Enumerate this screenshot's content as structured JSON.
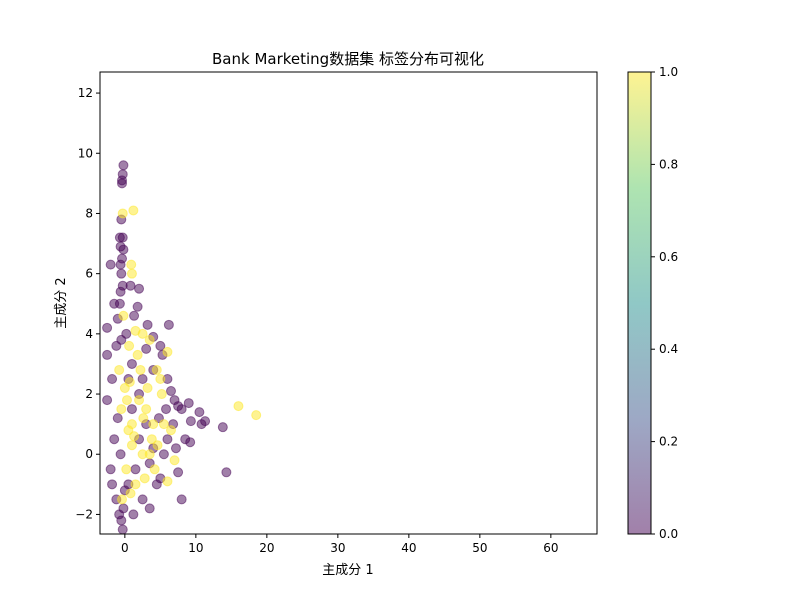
{
  "chart_data": {
    "type": "scatter",
    "title": "Bank Marketing数据集 标签分布可视化",
    "xlabel": "主成分 1",
    "ylabel": "主成分 2",
    "xlim": [
      -3.5,
      66.5
    ],
    "ylim": [
      -2.65,
      12.7
    ],
    "xticks": [
      0,
      10,
      20,
      30,
      40,
      50,
      60
    ],
    "yticks": [
      -2,
      0,
      2,
      4,
      6,
      8,
      10,
      12
    ],
    "grid": false,
    "colormap": "viridis",
    "colorbar": {
      "range": [
        0.0,
        1.0
      ],
      "ticks": [
        "0.0",
        "0.2",
        "0.4",
        "0.6",
        "0.8",
        "1.0"
      ]
    },
    "marker_alpha": 0.5,
    "colors": {
      "label_0": "#440154",
      "label_1": "#fde725"
    },
    "series": [
      {
        "label_value": 0,
        "points": [
          [
            -0.2,
            9.6
          ],
          [
            -0.3,
            9.3
          ],
          [
            -0.4,
            9.1
          ],
          [
            -0.4,
            9.0
          ],
          [
            -0.5,
            7.8
          ],
          [
            -0.7,
            7.2
          ],
          [
            -0.3,
            7.2
          ],
          [
            -0.6,
            6.9
          ],
          [
            -0.2,
            6.8
          ],
          [
            -0.4,
            6.5
          ],
          [
            -0.6,
            6.3
          ],
          [
            -2.0,
            6.3
          ],
          [
            -0.5,
            6.0
          ],
          [
            -0.3,
            5.6
          ],
          [
            -0.6,
            5.4
          ],
          [
            0.8,
            5.6
          ],
          [
            2.0,
            5.5
          ],
          [
            -0.7,
            5.0
          ],
          [
            -1.5,
            5.0
          ],
          [
            -2.5,
            4.2
          ],
          [
            1.3,
            4.6
          ],
          [
            1.8,
            4.9
          ],
          [
            6.2,
            4.3
          ],
          [
            3.2,
            4.3
          ],
          [
            4.0,
            3.9
          ],
          [
            5.0,
            3.6
          ],
          [
            5.3,
            3.3
          ],
          [
            -2.5,
            3.3
          ],
          [
            -1.2,
            3.6
          ],
          [
            6.0,
            2.5
          ],
          [
            6.5,
            2.1
          ],
          [
            7.0,
            1.8
          ],
          [
            7.5,
            1.6
          ],
          [
            8.0,
            1.5
          ],
          [
            9.0,
            1.7
          ],
          [
            10.5,
            1.4
          ],
          [
            10.8,
            1.0
          ],
          [
            11.3,
            1.1
          ],
          [
            9.3,
            1.1
          ],
          [
            13.8,
            0.9
          ],
          [
            14.3,
            -0.6
          ],
          [
            8.0,
            -1.5
          ],
          [
            7.5,
            -0.6
          ],
          [
            8.5,
            0.5
          ],
          [
            9.2,
            0.4
          ],
          [
            -0.3,
            -2.5
          ],
          [
            -0.5,
            -2.2
          ],
          [
            -0.8,
            -2.0
          ],
          [
            -0.2,
            -1.8
          ],
          [
            -1.2,
            -1.5
          ],
          [
            -2.0,
            -0.5
          ],
          [
            -2.5,
            1.8
          ],
          [
            -1.8,
            2.5
          ],
          [
            -1.5,
            0.5
          ],
          [
            -1.0,
            1.2
          ],
          [
            0.5,
            -1.0
          ],
          [
            1.5,
            -0.5
          ],
          [
            2.0,
            0.5
          ],
          [
            3.0,
            1.0
          ],
          [
            3.5,
            -0.3
          ],
          [
            4.0,
            0.2
          ],
          [
            4.5,
            -1.0
          ],
          [
            5.0,
            -0.8
          ],
          [
            5.5,
            0.0
          ],
          [
            6.0,
            0.5
          ],
          [
            0.5,
            2.5
          ],
          [
            1.0,
            3.0
          ],
          [
            2.5,
            2.5
          ],
          [
            3.0,
            3.5
          ],
          [
            -0.5,
            3.8
          ],
          [
            -1.0,
            4.5
          ],
          [
            0.2,
            4.0
          ],
          [
            1.0,
            1.5
          ],
          [
            2.0,
            2.0
          ],
          [
            4.0,
            2.8
          ],
          [
            2.5,
            -1.5
          ],
          [
            3.5,
            -1.8
          ],
          [
            1.2,
            -2.0
          ],
          [
            0.0,
            -1.2
          ],
          [
            -0.6,
            0.0
          ],
          [
            6.8,
            1.0
          ],
          [
            7.2,
            0.2
          ],
          [
            5.8,
            1.5
          ],
          [
            4.8,
            1.2
          ],
          [
            -1.8,
            -1.0
          ]
        ]
      },
      {
        "label_value": 1,
        "points": [
          [
            1.2,
            8.1
          ],
          [
            -0.3,
            8.0
          ],
          [
            0.9,
            6.3
          ],
          [
            1.0,
            6.0
          ],
          [
            -0.2,
            4.6
          ],
          [
            1.5,
            4.1
          ],
          [
            2.5,
            4.0
          ],
          [
            3.5,
            3.8
          ],
          [
            6.0,
            3.4
          ],
          [
            4.5,
            2.8
          ],
          [
            5.0,
            2.5
          ],
          [
            16.0,
            1.6
          ],
          [
            18.5,
            1.3
          ],
          [
            2.0,
            1.8
          ],
          [
            3.0,
            1.5
          ],
          [
            0.5,
            0.8
          ],
          [
            1.0,
            0.3
          ],
          [
            2.5,
            0.0
          ],
          [
            3.8,
            0.5
          ],
          [
            4.2,
            -0.5
          ],
          [
            1.5,
            -1.0
          ],
          [
            0.8,
            -1.3
          ],
          [
            0.0,
            2.2
          ],
          [
            -0.5,
            1.5
          ],
          [
            0.2,
            -0.5
          ],
          [
            5.5,
            1.0
          ],
          [
            6.5,
            0.8
          ],
          [
            7.0,
            -0.2
          ],
          [
            2.2,
            2.8
          ],
          [
            1.8,
            3.3
          ],
          [
            3.2,
            2.2
          ],
          [
            4.0,
            1.0
          ],
          [
            -0.8,
            2.8
          ],
          [
            0.6,
            3.6
          ],
          [
            2.8,
            -0.8
          ],
          [
            6.0,
            -0.9
          ],
          [
            3.5,
            0.0
          ],
          [
            1.0,
            1.0
          ],
          [
            0.3,
            1.8
          ],
          [
            5.2,
            2.0
          ],
          [
            -0.4,
            -1.5
          ],
          [
            1.3,
            0.6
          ],
          [
            2.6,
            1.2
          ],
          [
            4.6,
            0.3
          ],
          [
            0.7,
            2.4
          ]
        ]
      }
    ]
  }
}
